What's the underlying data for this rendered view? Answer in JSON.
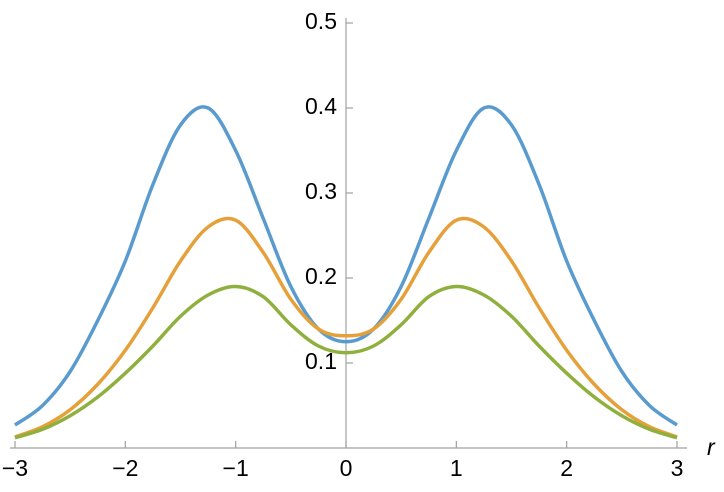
{
  "chart_data": {
    "type": "line",
    "x_label": "r",
    "x": [
      -3,
      -2.75,
      -2.5,
      -2.25,
      -2,
      -1.75,
      -1.5,
      -1.25,
      -1,
      -0.75,
      -0.5,
      -0.25,
      0,
      0.25,
      0.5,
      0.75,
      1,
      1.25,
      1.5,
      1.75,
      2,
      2.25,
      2.5,
      2.75,
      3
    ],
    "series": [
      {
        "color": "#5a9bcf",
        "values": [
          0.027,
          0.05,
          0.09,
          0.15,
          0.22,
          0.31,
          0.38,
          0.4,
          0.35,
          0.27,
          0.19,
          0.14,
          0.125,
          0.14,
          0.19,
          0.27,
          0.35,
          0.4,
          0.38,
          0.31,
          0.22,
          0.15,
          0.09,
          0.05,
          0.027
        ]
      },
      {
        "color": "#e5a03a",
        "values": [
          0.013,
          0.025,
          0.045,
          0.075,
          0.115,
          0.165,
          0.22,
          0.26,
          0.268,
          0.23,
          0.175,
          0.14,
          0.132,
          0.14,
          0.175,
          0.23,
          0.268,
          0.26,
          0.22,
          0.165,
          0.115,
          0.075,
          0.045,
          0.025,
          0.013
        ]
      },
      {
        "color": "#8fb03e",
        "values": [
          0.012,
          0.022,
          0.038,
          0.06,
          0.088,
          0.12,
          0.155,
          0.18,
          0.19,
          0.178,
          0.145,
          0.12,
          0.112,
          0.12,
          0.145,
          0.178,
          0.19,
          0.18,
          0.155,
          0.12,
          0.088,
          0.06,
          0.038,
          0.022,
          0.012
        ]
      }
    ],
    "xlim": [
      -3,
      3
    ],
    "ylim": [
      0,
      0.5
    ],
    "xticks": [
      {
        "value": -3,
        "label": "−3"
      },
      {
        "value": -2,
        "label": "−2"
      },
      {
        "value": -1,
        "label": "−1"
      },
      0,
      1,
      2,
      3
    ],
    "yticks": [
      0.1,
      0.2,
      0.3,
      0.4,
      0.5
    ],
    "grid": false
  }
}
